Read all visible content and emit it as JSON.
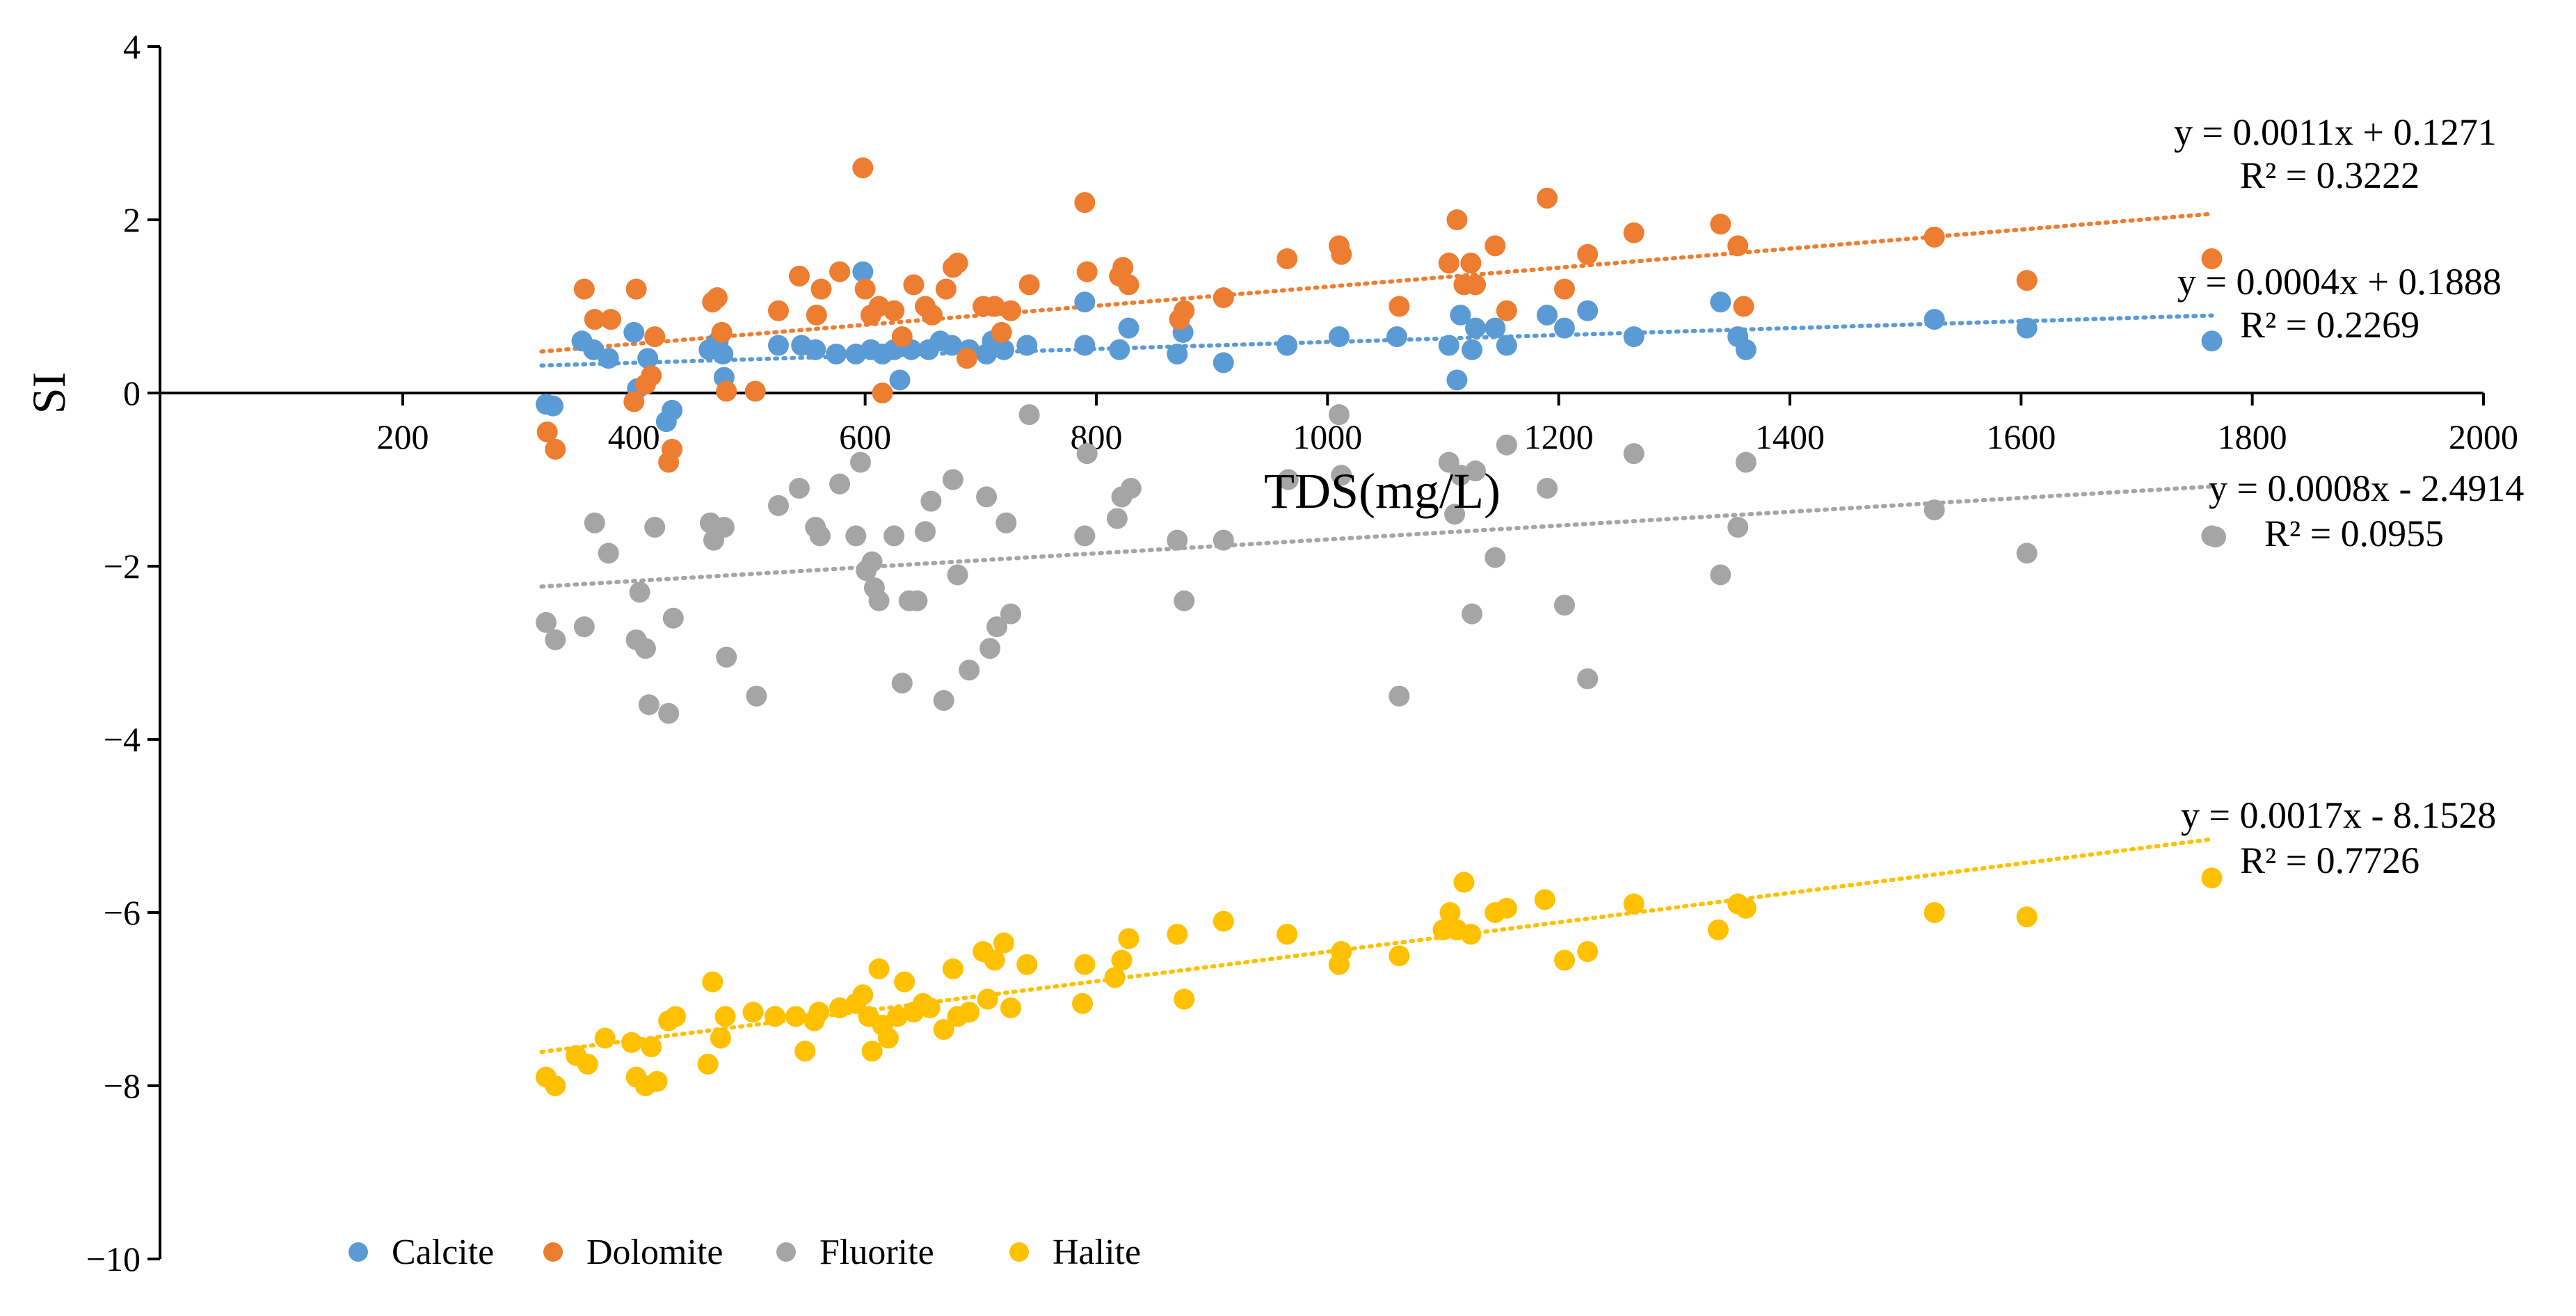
{
  "chart_data": {
    "type": "scatter",
    "xlabel": "TDS(mg/L)",
    "ylabel": "SI",
    "xlim": [
      0,
      2000
    ],
    "ylim": [
      -10,
      4
    ],
    "x_ticks": [
      "200",
      "400",
      "600",
      "800",
      "1000",
      "1200",
      "1400",
      "1600",
      "1800",
      "2000"
    ],
    "y_ticks": [
      "4",
      "2",
      "0",
      "−2",
      "−4",
      "−6",
      "−8",
      "−10"
    ],
    "legend_position": "bottom-left",
    "series": [
      {
        "name": "Calcite",
        "color": "#5B9BD5",
        "points": [
          [
            324,
            -0.13
          ],
          [
            330,
            -0.15
          ],
          [
            355,
            0.6
          ],
          [
            365,
            0.5
          ],
          [
            378,
            0.4
          ],
          [
            400,
            0.7
          ],
          [
            403,
            0.05
          ],
          [
            412,
            0.4
          ],
          [
            428,
            -0.33
          ],
          [
            433,
            -0.2
          ],
          [
            465,
            0.5
          ],
          [
            473,
            0.6
          ],
          [
            477,
            0.45
          ],
          [
            478,
            0.18
          ],
          [
            525,
            0.55
          ],
          [
            545,
            0.55
          ],
          [
            557,
            0.5
          ],
          [
            575,
            0.45
          ],
          [
            592,
            0.45
          ],
          [
            598,
            1.4
          ],
          [
            605,
            0.5
          ],
          [
            615,
            0.45
          ],
          [
            625,
            0.5
          ],
          [
            630,
            0.15
          ],
          [
            640,
            0.5
          ],
          [
            655,
            0.5
          ],
          [
            665,
            0.6
          ],
          [
            675,
            0.55
          ],
          [
            690,
            0.5
          ],
          [
            705,
            0.45
          ],
          [
            710,
            0.6
          ],
          [
            720,
            0.5
          ],
          [
            740,
            0.55
          ],
          [
            790,
            1.05
          ],
          [
            790,
            0.55
          ],
          [
            820,
            0.5
          ],
          [
            828,
            0.75
          ],
          [
            870,
            0.45
          ],
          [
            875,
            0.7
          ],
          [
            910,
            0.35
          ],
          [
            965,
            0.55
          ],
          [
            1010,
            0.65
          ],
          [
            1060,
            0.65
          ],
          [
            1105,
            0.55
          ],
          [
            1112,
            0.15
          ],
          [
            1115,
            0.9
          ],
          [
            1125,
            0.5
          ],
          [
            1128,
            0.75
          ],
          [
            1145,
            0.75
          ],
          [
            1155,
            0.55
          ],
          [
            1190,
            0.9
          ],
          [
            1205,
            0.75
          ],
          [
            1225,
            0.95
          ],
          [
            1265,
            0.65
          ],
          [
            1340,
            1.05
          ],
          [
            1355,
            0.65
          ],
          [
            1362,
            0.5
          ],
          [
            1525,
            0.85
          ],
          [
            1605,
            0.75
          ],
          [
            1765,
            0.6
          ]
        ],
        "trendline": {
          "slope": 0.0004,
          "intercept": 0.1888,
          "x_range": [
            320,
            1765
          ]
        },
        "equation": "y = 0.0004x + 0.1888",
        "r2_label": "R² = 0.2269"
      },
      {
        "name": "Dolomite",
        "color": "#ED7D31",
        "points": [
          [
            325,
            -0.45
          ],
          [
            332,
            -0.65
          ],
          [
            357,
            1.2
          ],
          [
            366,
            0.85
          ],
          [
            380,
            0.85
          ],
          [
            400,
            -0.1
          ],
          [
            402,
            1.2
          ],
          [
            410,
            0.1
          ],
          [
            415,
            0.2
          ],
          [
            418,
            0.65
          ],
          [
            430,
            -0.8
          ],
          [
            433,
            -0.65
          ],
          [
            468,
            1.05
          ],
          [
            472,
            1.1
          ],
          [
            476,
            0.7
          ],
          [
            480,
            0.02
          ],
          [
            505,
            0.02
          ],
          [
            525,
            0.95
          ],
          [
            543,
            1.35
          ],
          [
            558,
            0.9
          ],
          [
            562,
            1.2
          ],
          [
            578,
            1.4
          ],
          [
            598,
            2.6
          ],
          [
            600,
            1.2
          ],
          [
            605,
            0.9
          ],
          [
            612,
            1.0
          ],
          [
            615,
            0.0
          ],
          [
            625,
            0.95
          ],
          [
            632,
            0.65
          ],
          [
            642,
            1.25
          ],
          [
            652,
            1.0
          ],
          [
            658,
            0.9
          ],
          [
            670,
            1.2
          ],
          [
            676,
            1.45
          ],
          [
            680,
            1.5
          ],
          [
            688,
            0.4
          ],
          [
            702,
            1.0
          ],
          [
            712,
            1.0
          ],
          [
            718,
            0.7
          ],
          [
            726,
            0.95
          ],
          [
            742,
            1.25
          ],
          [
            790,
            2.2
          ],
          [
            792,
            1.4
          ],
          [
            820,
            1.35
          ],
          [
            823,
            1.45
          ],
          [
            828,
            1.25
          ],
          [
            872,
            0.85
          ],
          [
            876,
            0.95
          ],
          [
            910,
            1.1
          ],
          [
            965,
            1.55
          ],
          [
            1010,
            1.7
          ],
          [
            1012,
            1.6
          ],
          [
            1062,
            1.0
          ],
          [
            1105,
            1.5
          ],
          [
            1112,
            2.0
          ],
          [
            1118,
            1.25
          ],
          [
            1124,
            1.5
          ],
          [
            1128,
            1.25
          ],
          [
            1145,
            1.7
          ],
          [
            1155,
            0.95
          ],
          [
            1190,
            2.25
          ],
          [
            1205,
            1.2
          ],
          [
            1225,
            1.6
          ],
          [
            1265,
            1.85
          ],
          [
            1340,
            1.95
          ],
          [
            1355,
            1.7
          ],
          [
            1360,
            1.0
          ],
          [
            1525,
            1.8
          ],
          [
            1605,
            1.3
          ],
          [
            1765,
            1.55
          ]
        ],
        "trendline": {
          "slope": 0.0011,
          "intercept": 0.1271,
          "x_range": [
            320,
            1765
          ]
        },
        "equation": "y = 0.0011x + 0.1271",
        "r2_label": "R² = 0.3222"
      },
      {
        "name": "Fluorite",
        "color": "#A5A5A5",
        "points": [
          [
            324,
            -2.65
          ],
          [
            332,
            -2.85
          ],
          [
            357,
            -2.7
          ],
          [
            366,
            -1.5
          ],
          [
            378,
            -1.85
          ],
          [
            402,
            -2.85
          ],
          [
            405,
            -2.3
          ],
          [
            410,
            -2.95
          ],
          [
            413,
            -3.6
          ],
          [
            418,
            -1.55
          ],
          [
            430,
            -3.7
          ],
          [
            434,
            -2.6
          ],
          [
            466,
            -1.5
          ],
          [
            469,
            -1.7
          ],
          [
            478,
            -1.55
          ],
          [
            480,
            -3.05
          ],
          [
            506,
            -3.5
          ],
          [
            525,
            -1.3
          ],
          [
            543,
            -1.1
          ],
          [
            557,
            -1.55
          ],
          [
            561,
            -1.65
          ],
          [
            578,
            -1.05
          ],
          [
            592,
            -1.65
          ],
          [
            596,
            -0.8
          ],
          [
            601,
            -2.05
          ],
          [
            606,
            -1.95
          ],
          [
            608,
            -2.25
          ],
          [
            612,
            -2.4
          ],
          [
            625,
            -1.65
          ],
          [
            632,
            -3.35
          ],
          [
            638,
            -2.4
          ],
          [
            645,
            -2.4
          ],
          [
            652,
            -1.6
          ],
          [
            657,
            -1.25
          ],
          [
            668,
            -3.55
          ],
          [
            676,
            -1.0
          ],
          [
            680,
            -2.1
          ],
          [
            690,
            -3.2
          ],
          [
            705,
            -1.2
          ],
          [
            708,
            -2.95
          ],
          [
            714,
            -2.7
          ],
          [
            722,
            -1.5
          ],
          [
            726,
            -2.55
          ],
          [
            742,
            -0.25
          ],
          [
            790,
            -1.65
          ],
          [
            792,
            -0.7
          ],
          [
            818,
            -1.45
          ],
          [
            822,
            -1.2
          ],
          [
            830,
            -1.1
          ],
          [
            870,
            -1.7
          ],
          [
            876,
            -2.4
          ],
          [
            910,
            -1.7
          ],
          [
            966,
            -1.0
          ],
          [
            1010,
            -0.25
          ],
          [
            1012,
            -0.95
          ],
          [
            1062,
            -3.5
          ],
          [
            1105,
            -0.8
          ],
          [
            1110,
            -1.4
          ],
          [
            1115,
            -0.95
          ],
          [
            1125,
            -2.55
          ],
          [
            1128,
            -0.9
          ],
          [
            1145,
            -1.9
          ],
          [
            1155,
            -0.6
          ],
          [
            1190,
            -1.1
          ],
          [
            1205,
            -2.45
          ],
          [
            1225,
            -3.3
          ],
          [
            1265,
            -0.7
          ],
          [
            1340,
            -2.1
          ],
          [
            1355,
            -1.55
          ],
          [
            1362,
            -0.8
          ],
          [
            1525,
            -1.35
          ],
          [
            1605,
            -1.85
          ],
          [
            1765,
            -1.65
          ]
        ],
        "trendline": {
          "slope": 0.0008,
          "intercept": -2.4914,
          "x_range": [
            320,
            1765
          ]
        },
        "equation": "y = 0.0008x - 2.4914",
        "r2_label": "R² = 0.0955"
      },
      {
        "name": "Halite",
        "color": "#FFC000",
        "points": [
          [
            324,
            -7.9
          ],
          [
            332,
            -8.0
          ],
          [
            350,
            -7.65
          ],
          [
            360,
            -7.75
          ],
          [
            375,
            -7.45
          ],
          [
            398,
            -7.5
          ],
          [
            402,
            -7.9
          ],
          [
            410,
            -8.0
          ],
          [
            415,
            -7.55
          ],
          [
            420,
            -7.95
          ],
          [
            430,
            -7.25
          ],
          [
            436,
            -7.2
          ],
          [
            464,
            -7.75
          ],
          [
            468,
            -6.8
          ],
          [
            475,
            -7.45
          ],
          [
            479,
            -7.2
          ],
          [
            503,
            -7.15
          ],
          [
            522,
            -7.2
          ],
          [
            540,
            -7.2
          ],
          [
            548,
            -7.6
          ],
          [
            556,
            -7.25
          ],
          [
            560,
            -7.15
          ],
          [
            578,
            -7.1
          ],
          [
            592,
            -7.05
          ],
          [
            598,
            -6.95
          ],
          [
            603,
            -7.2
          ],
          [
            606,
            -7.6
          ],
          [
            612,
            -6.65
          ],
          [
            615,
            -7.3
          ],
          [
            620,
            -7.45
          ],
          [
            628,
            -7.2
          ],
          [
            634,
            -6.8
          ],
          [
            642,
            -7.15
          ],
          [
            650,
            -7.05
          ],
          [
            656,
            -7.1
          ],
          [
            668,
            -7.35
          ],
          [
            676,
            -6.65
          ],
          [
            680,
            -7.2
          ],
          [
            690,
            -7.15
          ],
          [
            702,
            -6.45
          ],
          [
            706,
            -7.0
          ],
          [
            712,
            -6.55
          ],
          [
            720,
            -6.35
          ],
          [
            726,
            -7.1
          ],
          [
            740,
            -6.6
          ],
          [
            788,
            -7.05
          ],
          [
            790,
            -6.6
          ],
          [
            816,
            -6.75
          ],
          [
            822,
            -6.55
          ],
          [
            828,
            -6.3
          ],
          [
            870,
            -6.25
          ],
          [
            876,
            -7.0
          ],
          [
            910,
            -6.1
          ],
          [
            965,
            -6.25
          ],
          [
            1010,
            -6.6
          ],
          [
            1012,
            -6.45
          ],
          [
            1062,
            -6.5
          ],
          [
            1100,
            -6.2
          ],
          [
            1106,
            -6.0
          ],
          [
            1112,
            -6.2
          ],
          [
            1118,
            -5.65
          ],
          [
            1124,
            -6.25
          ],
          [
            1145,
            -6.0
          ],
          [
            1155,
            -5.95
          ],
          [
            1188,
            -5.85
          ],
          [
            1205,
            -6.55
          ],
          [
            1225,
            -6.45
          ],
          [
            1265,
            -5.9
          ],
          [
            1338,
            -6.2
          ],
          [
            1355,
            -5.9
          ],
          [
            1362,
            -5.95
          ],
          [
            1525,
            -6.0
          ],
          [
            1605,
            -6.05
          ],
          [
            1765,
            -5.6
          ]
        ],
        "trendline": {
          "slope": 0.0017,
          "intercept": -8.1528,
          "x_range": [
            320,
            1765
          ]
        },
        "equation": "y = 0.0017x - 8.1528",
        "r2_label": "R² = 0.7726"
      }
    ]
  }
}
